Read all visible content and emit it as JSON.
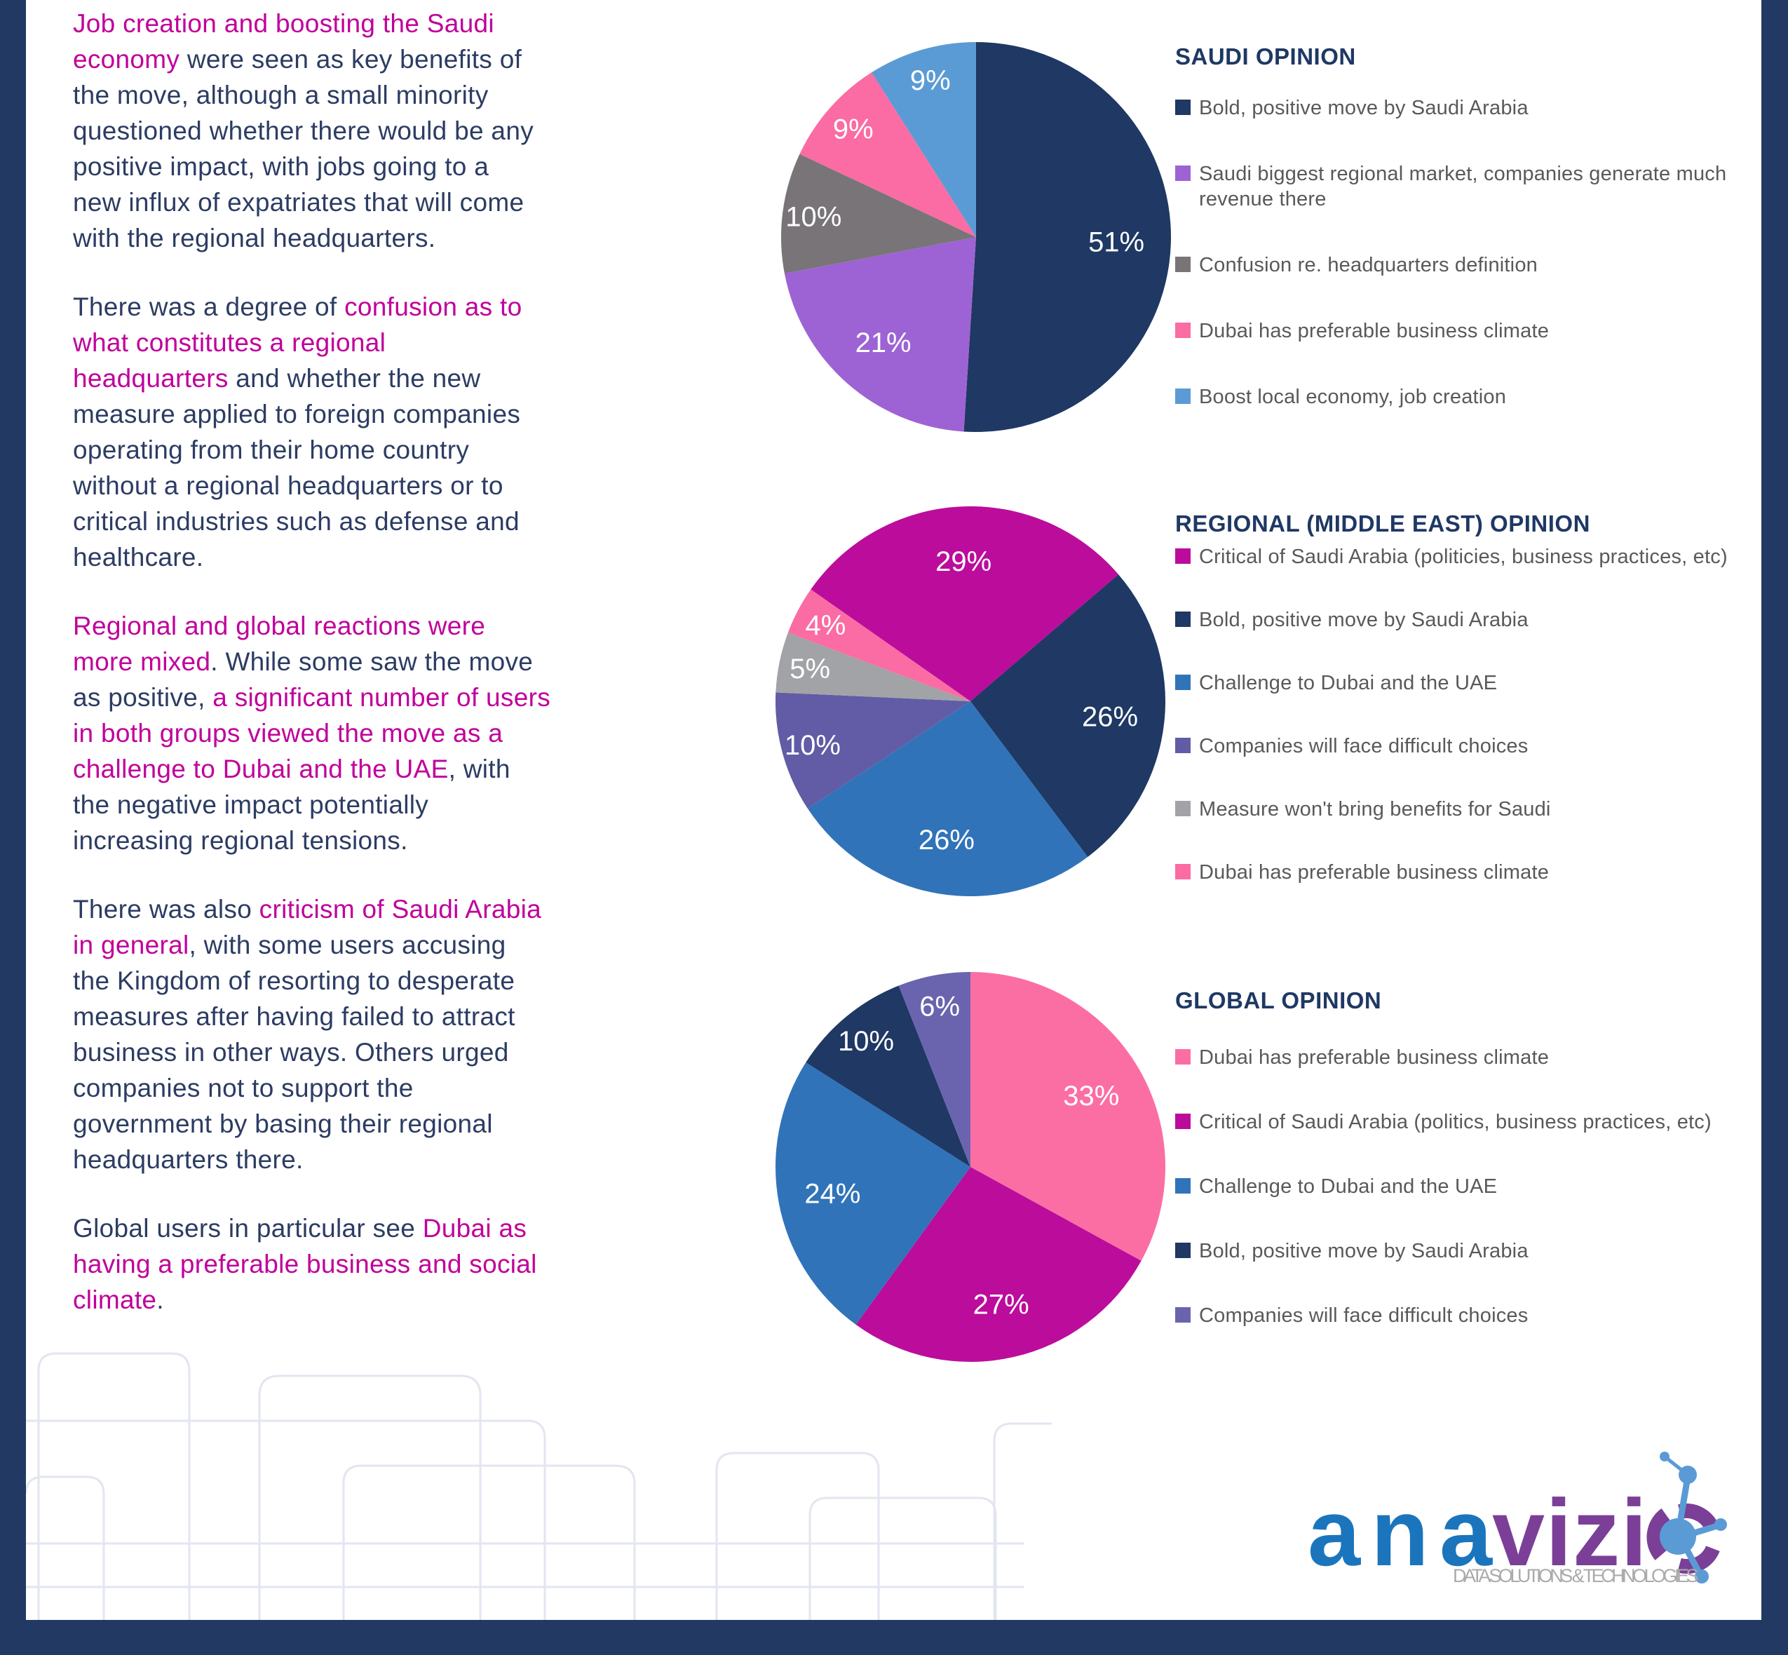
{
  "colors": {
    "accent_magenta": "#C0009B",
    "body_text_navy": "#2C3C63",
    "title_navy": "#1F3864",
    "legend_text_gray": "#595959",
    "frame_navy": "#223963",
    "pattern_lavender": "#E3E6F1",
    "logo_blue": "#1B75BC",
    "logo_purple": "#7B3F98",
    "logo_light_blue": "#5B9BD5",
    "logo_tagline_gray": "#ABABAB"
  },
  "article": {
    "paragraphs": [
      {
        "lines": [
          [
            {
              "t": "Job creation and boosting the Saudi",
              "h": true
            }
          ],
          [
            {
              "t": "economy",
              "h": true
            },
            {
              "t": " were seen as key benefits of",
              "h": false
            }
          ],
          [
            {
              "t": "the move, although a small minority",
              "h": false
            }
          ],
          [
            {
              "t": "questioned whether there would be any",
              "h": false
            }
          ],
          [
            {
              "t": "positive impact, with jobs going to a",
              "h": false
            }
          ],
          [
            {
              "t": "new influx of expatriates that will come",
              "h": false
            }
          ],
          [
            {
              "t": "with the regional headquarters.",
              "h": false
            }
          ]
        ]
      },
      {
        "lines": [
          [
            {
              "t": "There was a degree of ",
              "h": false
            },
            {
              "t": "confusion as to",
              "h": true
            }
          ],
          [
            {
              "t": "what constitutes a regional",
              "h": true
            }
          ],
          [
            {
              "t": "headquarters",
              "h": true
            },
            {
              "t": " and whether the new",
              "h": false
            }
          ],
          [
            {
              "t": "measure applied to foreign companies",
              "h": false
            }
          ],
          [
            {
              "t": "operating from their home country",
              "h": false
            }
          ],
          [
            {
              "t": "without a regional headquarters or to",
              "h": false
            }
          ],
          [
            {
              "t": "critical industries such as defense and",
              "h": false
            }
          ],
          [
            {
              "t": "healthcare.",
              "h": false
            }
          ]
        ]
      },
      {
        "lines": [
          [
            {
              "t": "Regional and global reactions were",
              "h": true
            }
          ],
          [
            {
              "t": "more mixed",
              "h": true
            },
            {
              "t": ". While some saw the move",
              "h": false
            }
          ],
          [
            {
              "t": "as positive, ",
              "h": false
            },
            {
              "t": "a significant number of users",
              "h": true
            }
          ],
          [
            {
              "t": "in both groups viewed the move as a",
              "h": true
            }
          ],
          [
            {
              "t": "challenge to Dubai and the UAE",
              "h": true
            },
            {
              "t": ", with",
              "h": false
            }
          ],
          [
            {
              "t": "the negative impact potentially",
              "h": false
            }
          ],
          [
            {
              "t": "increasing regional tensions.",
              "h": false
            }
          ]
        ]
      },
      {
        "lines": [
          [
            {
              "t": "There was also ",
              "h": false
            },
            {
              "t": "criticism of Saudi Arabia",
              "h": true
            }
          ],
          [
            {
              "t": "in general",
              "h": true
            },
            {
              "t": ", with some users accusing",
              "h": false
            }
          ],
          [
            {
              "t": "the Kingdom of resorting to desperate",
              "h": false
            }
          ],
          [
            {
              "t": "measures after having failed to attract",
              "h": false
            }
          ],
          [
            {
              "t": "business in other ways. Others urged",
              "h": false
            }
          ],
          [
            {
              "t": "companies not to support the",
              "h": false
            }
          ],
          [
            {
              "t": "government by basing their regional",
              "h": false
            }
          ],
          [
            {
              "t": "headquarters there.",
              "h": false
            }
          ]
        ]
      },
      {
        "lines": [
          [
            {
              "t": "Global users in particular see ",
              "h": false
            },
            {
              "t": "Dubai as",
              "h": true
            }
          ],
          [
            {
              "t": "having a preferable business and social",
              "h": true
            }
          ],
          [
            {
              "t": "climate",
              "h": true
            },
            {
              "t": ".",
              "h": false
            }
          ]
        ]
      }
    ]
  },
  "chart_data": [
    {
      "type": "pie",
      "title": "SAUDI OPINION",
      "start_angle_deg": 0,
      "legend_position": "right",
      "slices": [
        {
          "label": "Bold, positive move by Saudi Arabia",
          "value": 51,
          "color": "#1F3864"
        },
        {
          "label": "Saudi biggest regional market, companies generate much revenue there",
          "value": 21,
          "color": "#9D63D4"
        },
        {
          "label": "Confusion re. headquarters definition",
          "value": 10,
          "color": "#797478"
        },
        {
          "label": "Dubai has preferable business climate",
          "value": 9,
          "color": "#FA6CA3"
        },
        {
          "label": "Boost local economy, job creation",
          "value": 9,
          "color": "#5B9BD5"
        }
      ]
    },
    {
      "type": "pie",
      "title": "REGIONAL (MIDDLE EAST) OPINION",
      "start_angle_deg": 305,
      "legend_position": "right",
      "slices": [
        {
          "label": "Critical of Saudi Arabia (politicies, business practices, etc)",
          "value": 29,
          "color": "#BC0C9C"
        },
        {
          "label": "Bold, positive move by Saudi Arabia",
          "value": 26,
          "color": "#1F3864"
        },
        {
          "label": "Challenge to Dubai and the UAE",
          "value": 26,
          "color": "#3173B9"
        },
        {
          "label": "Companies will face difficult choices",
          "value": 10,
          "color": "#615CA5"
        },
        {
          "label": "Measure won't bring benefits for Saudi",
          "value": 5,
          "color": "#A2A3A7"
        },
        {
          "label": "Dubai has preferable business climate",
          "value": 4,
          "color": "#FA6CA3"
        }
      ]
    },
    {
      "type": "pie",
      "title": "GLOBAL OPINION",
      "start_angle_deg": 0,
      "legend_position": "right",
      "slices": [
        {
          "label": "Dubai has preferable business climate",
          "value": 33,
          "color": "#FB6EA4"
        },
        {
          "label": "Critical of Saudi Arabia (politics, business practices, etc)",
          "value": 27,
          "color": "#BC0C9C"
        },
        {
          "label": "Challenge to Dubai and the UAE",
          "value": 24,
          "color": "#3173B9"
        },
        {
          "label": "Bold, positive move by Saudi Arabia",
          "value": 10,
          "color": "#1F3864"
        },
        {
          "label": "Companies will face difficult choices",
          "value": 6,
          "color": "#6A64AE"
        }
      ]
    }
  ],
  "logo": {
    "brand_blue": "ana",
    "brand_purple": "vizi",
    "brand_last_letter": "o",
    "tagline": "DATA SOLUTIONS & TECHNOLOGIES"
  }
}
